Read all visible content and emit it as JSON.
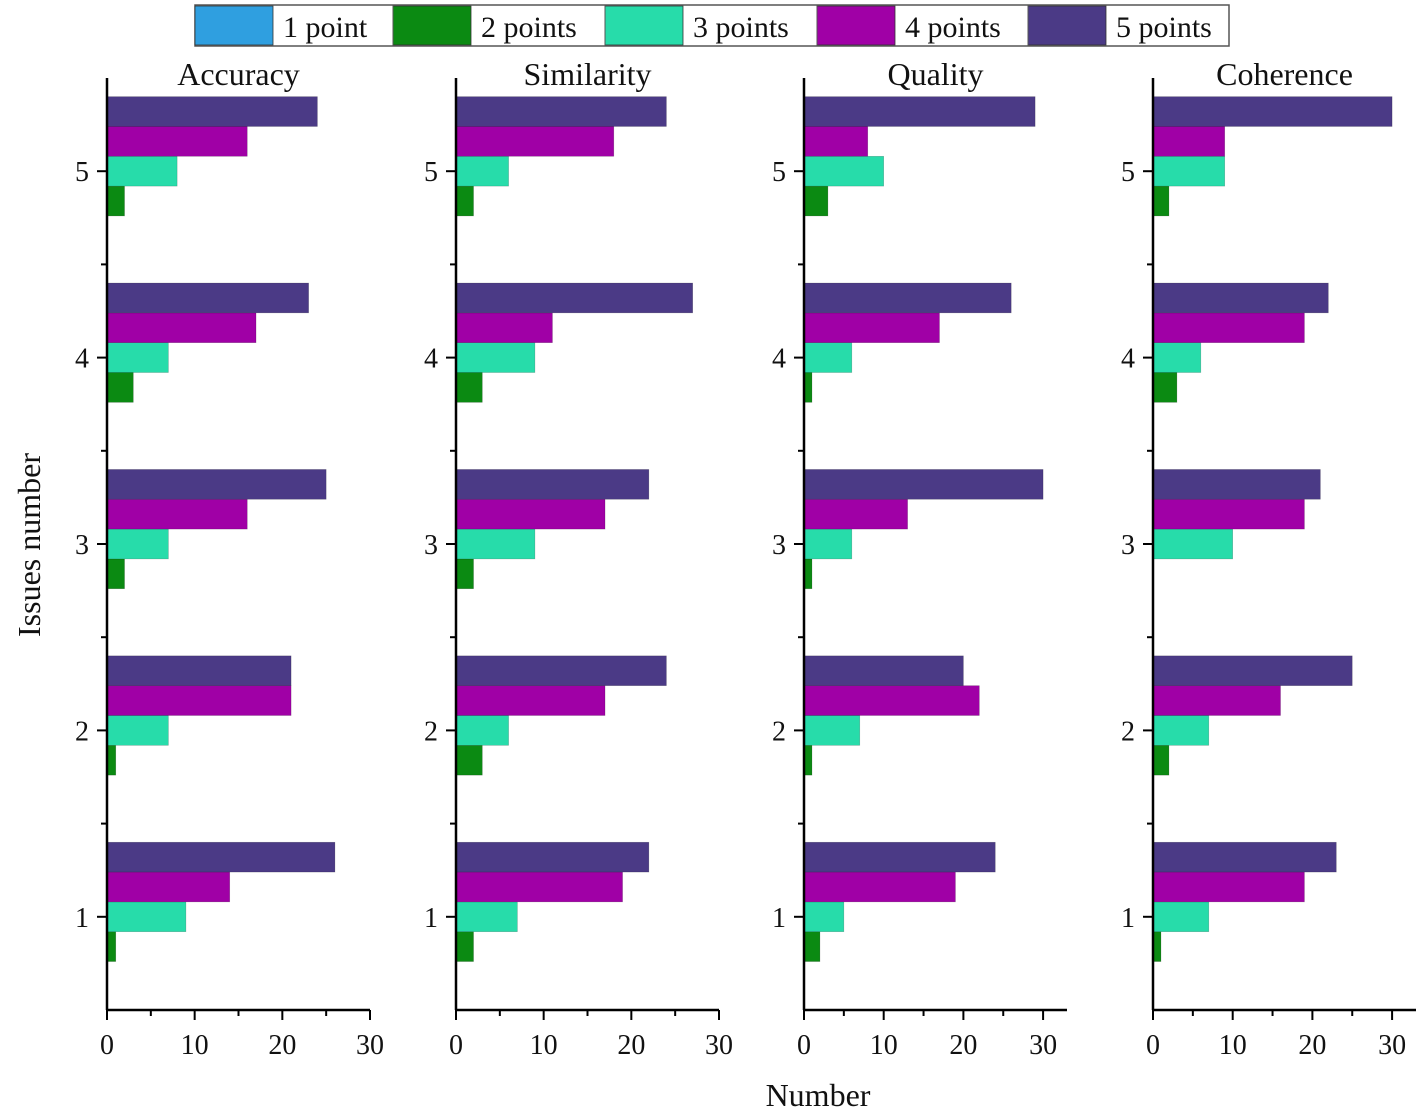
{
  "chart_data": {
    "type": "bar",
    "orientation": "horizontal",
    "xlabel": "Number",
    "ylabel": "Issues number",
    "categories": [
      "1",
      "2",
      "3",
      "4",
      "5"
    ],
    "legend": {
      "placement": "top",
      "entries": [
        "1 point",
        "2 points",
        "3 points",
        "4 points",
        "5 points"
      ]
    },
    "colors": {
      "1 point": "#2f9fe0",
      "2 points": "#0b8a12",
      "3 points": "#27dcaa",
      "4 points": "#a000a6",
      "5 points": "#4b3a86"
    },
    "grid": false,
    "panels": [
      {
        "title": "Accuracy",
        "xlim": [
          0,
          30
        ],
        "xticks": [
          "0",
          "10",
          "20",
          "30"
        ],
        "series": [
          {
            "name": "1 point",
            "values": [
              0,
              0,
              0,
              0,
              0
            ]
          },
          {
            "name": "2 points",
            "values": [
              1,
              1,
              2,
              3,
              2
            ]
          },
          {
            "name": "3 points",
            "values": [
              9,
              7,
              7,
              7,
              8
            ]
          },
          {
            "name": "4 points",
            "values": [
              14,
              21,
              16,
              17,
              16
            ]
          },
          {
            "name": "5 points",
            "values": [
              26,
              21,
              25,
              23,
              24
            ]
          }
        ]
      },
      {
        "title": "Similarity",
        "xlim": [
          0,
          30
        ],
        "xticks": [
          "0",
          "10",
          "20",
          "30"
        ],
        "series": [
          {
            "name": "1 point",
            "values": [
              0,
              0,
              0,
              0,
              0
            ]
          },
          {
            "name": "2 points",
            "values": [
              2,
              3,
              2,
              3,
              2
            ]
          },
          {
            "name": "3 points",
            "values": [
              7,
              6,
              9,
              9,
              6
            ]
          },
          {
            "name": "4 points",
            "values": [
              19,
              17,
              17,
              11,
              18
            ]
          },
          {
            "name": "5 points",
            "values": [
              22,
              24,
              22,
              27,
              24
            ]
          }
        ]
      },
      {
        "title": "Quality",
        "xlim": [
          0,
          33
        ],
        "xticks": [
          "0",
          "10",
          "20",
          "30"
        ],
        "series": [
          {
            "name": "1 point",
            "values": [
              0,
              0,
              0,
              0,
              0
            ]
          },
          {
            "name": "2 points",
            "values": [
              2,
              1,
              1,
              1,
              3
            ]
          },
          {
            "name": "3 points",
            "values": [
              5,
              7,
              6,
              6,
              10
            ]
          },
          {
            "name": "4 points",
            "values": [
              19,
              22,
              13,
              17,
              8
            ]
          },
          {
            "name": "5 points",
            "values": [
              24,
              20,
              30,
              26,
              29
            ]
          }
        ]
      },
      {
        "title": "Coherence",
        "xlim": [
          0,
          33
        ],
        "xticks": [
          "0",
          "10",
          "20",
          "30"
        ],
        "series": [
          {
            "name": "1 point",
            "values": [
              0,
              0,
              0,
              0,
              0
            ]
          },
          {
            "name": "2 points",
            "values": [
              1,
              2,
              0,
              3,
              2
            ]
          },
          {
            "name": "3 points",
            "values": [
              7,
              7,
              10,
              6,
              9
            ]
          },
          {
            "name": "4 points",
            "values": [
              19,
              16,
              19,
              19,
              9
            ]
          },
          {
            "name": "5 points",
            "values": [
              23,
              25,
              21,
              22,
              30
            ]
          }
        ]
      }
    ]
  }
}
